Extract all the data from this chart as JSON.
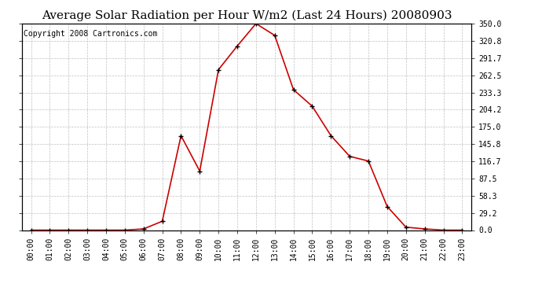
{
  "title": "Average Solar Radiation per Hour W/m2 (Last 24 Hours) 20080903",
  "copyright_text": "Copyright 2008 Cartronics.com",
  "hours": [
    "00:00",
    "01:00",
    "02:00",
    "03:00",
    "04:00",
    "05:00",
    "06:00",
    "07:00",
    "08:00",
    "09:00",
    "10:00",
    "11:00",
    "12:00",
    "13:00",
    "14:00",
    "15:00",
    "16:00",
    "17:00",
    "18:00",
    "19:00",
    "20:00",
    "21:00",
    "22:00",
    "23:00"
  ],
  "values": [
    0,
    0,
    0,
    0,
    0,
    0,
    2,
    15,
    160,
    100,
    272,
    312,
    350,
    330,
    238,
    210,
    160,
    125,
    117,
    40,
    5,
    2,
    0,
    0
  ],
  "y_ticks": [
    0.0,
    29.2,
    58.3,
    87.5,
    116.7,
    145.8,
    175.0,
    204.2,
    233.3,
    262.5,
    291.7,
    320.8,
    350.0
  ],
  "y_max": 350.0,
  "y_min": 0.0,
  "line_color": "#cc0000",
  "marker": "+",
  "marker_color": "#000000",
  "bg_color": "#ffffff",
  "grid_color": "#c0c0c0",
  "title_fontsize": 11,
  "copyright_fontsize": 7
}
